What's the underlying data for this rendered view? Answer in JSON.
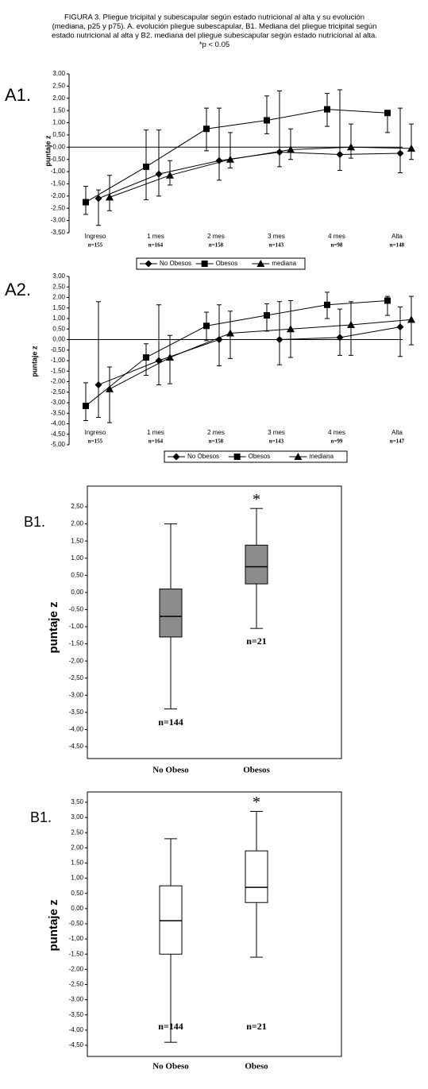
{
  "title_lines": [
    "FIGURA 3. Pliegue tricipital y subescapular según estado nutricional al alta y su evolución",
    "(mediana, p25 y p75). A. evolución pliegue subescapular, B1. Mediana del pliegue tricipital según",
    "estado nutricional al alta y B2. mediana del pliegue subescapular según estado nutricional al alta.",
    "*p < 0.05"
  ],
  "chart_data": [
    {
      "type": "line",
      "panel": "A1.",
      "y_label": "puntaje z",
      "categories": [
        "Ingreso",
        "1 mes",
        "2 mes",
        "3 mes",
        "4 mes",
        "Alta"
      ],
      "n_labels": [
        "n=155",
        "n=164",
        "n=158",
        "n=143",
        "n=98",
        "n=148"
      ],
      "ylim": [
        -3.5,
        3
      ],
      "yticks": [
        {
          "value": 3,
          "label": "3,00"
        },
        {
          "value": 2.5,
          "label": "2,50"
        },
        {
          "value": 2,
          "label": "2,00"
        },
        {
          "value": 1.5,
          "label": "1,50"
        },
        {
          "value": 1,
          "label": "1,00"
        },
        {
          "value": 0.5,
          "label": "0,50"
        },
        {
          "value": 0,
          "label": "0,00"
        },
        {
          "value": -0.5,
          "label": "-0,50"
        },
        {
          "value": -1,
          "label": "-1,00"
        },
        {
          "value": -1.5,
          "label": "-1,50"
        },
        {
          "value": -2,
          "label": "-2,00"
        },
        {
          "value": -2.5,
          "label": "-2,50"
        },
        {
          "value": -3,
          "label": "-3,00"
        },
        {
          "value": -3.5,
          "label": "-3,50"
        }
      ],
      "series": [
        {
          "name": "No Obesos",
          "marker": "diamond",
          "color": "#000000",
          "values": [
            -2.1,
            -1.1,
            -0.55,
            -0.2,
            -0.3,
            -0.25
          ],
          "low": [
            -3.2,
            -2.0,
            -1.35,
            -0.8,
            -0.95,
            -1.05
          ],
          "high": [
            -1.75,
            0.7,
            1.6,
            2.3,
            2.35,
            1.6
          ]
        },
        {
          "name": "Obesos",
          "marker": "square",
          "color": "#000000",
          "values": [
            -2.25,
            -0.8,
            0.75,
            1.1,
            1.55,
            1.4
          ],
          "low": [
            -2.75,
            -2.15,
            -0.15,
            0.55,
            0.85,
            0.6
          ],
          "high": [
            -1.6,
            0.7,
            1.6,
            2.1,
            2.2,
            1.5
          ]
        },
        {
          "name": "mediana",
          "marker": "triangle",
          "color": "#000000",
          "values": [
            -2.05,
            -1.15,
            -0.5,
            -0.1,
            0.0,
            -0.05
          ],
          "low": [
            -2.6,
            -1.55,
            -0.85,
            -0.5,
            -0.45,
            -0.5
          ],
          "high": [
            -1.15,
            -0.55,
            0.6,
            0.75,
            0.95,
            0.95
          ]
        }
      ]
    },
    {
      "type": "line",
      "panel": "A2.",
      "y_label": "puntaje z",
      "categories": [
        "Ingreso",
        "1 mes",
        "2 mes",
        "3 mes",
        "4 mes",
        "Alta"
      ],
      "n_labels": [
        "n=155",
        "n=164",
        "n=158",
        "n=143",
        "n=99",
        "n=147"
      ],
      "ylim": [
        -5,
        3
      ],
      "yticks": [
        {
          "value": 3,
          "label": "3,00"
        },
        {
          "value": 2.5,
          "label": "2,50"
        },
        {
          "value": 2,
          "label": "2,00"
        },
        {
          "value": 1.5,
          "label": "1,50"
        },
        {
          "value": 1,
          "label": "1,00"
        },
        {
          "value": 0.5,
          "label": "0,50"
        },
        {
          "value": 0,
          "label": "0,00"
        },
        {
          "value": -0.5,
          "label": "-0,50"
        },
        {
          "value": -1,
          "label": "-1,00"
        },
        {
          "value": -1.5,
          "label": "-1,50"
        },
        {
          "value": -2,
          "label": "-2,00"
        },
        {
          "value": -2.5,
          "label": "-2,50"
        },
        {
          "value": -3,
          "label": "-3,00"
        },
        {
          "value": -3.5,
          "label": "-3,50"
        },
        {
          "value": -4,
          "label": "-4,00"
        },
        {
          "value": -4.5,
          "label": "-4,50"
        },
        {
          "value": -5,
          "label": "-5,00"
        }
      ],
      "series": [
        {
          "name": "No Obesos",
          "marker": "diamond",
          "color": "#000000",
          "values": [
            -2.15,
            -1.0,
            0.0,
            0.0,
            0.1,
            0.6
          ],
          "low": [
            -3.7,
            -2.15,
            -1.25,
            -1.2,
            -0.75,
            -0.8
          ],
          "high": [
            1.8,
            1.65,
            1.65,
            1.8,
            1.45,
            1.55
          ]
        },
        {
          "name": "Obesos",
          "marker": "square",
          "color": "#000000",
          "values": [
            -3.15,
            -0.85,
            0.65,
            1.15,
            1.65,
            1.85
          ],
          "low": [
            -3.85,
            -1.7,
            -0.05,
            0.4,
            1.0,
            1.15
          ],
          "high": [
            -2.05,
            -0.2,
            1.3,
            1.7,
            2.25,
            2.05
          ]
        },
        {
          "name": "mediana",
          "marker": "triangle",
          "color": "#000000",
          "values": [
            -2.35,
            -0.85,
            0.3,
            0.5,
            0.7,
            0.95
          ],
          "low": [
            -3.95,
            -2.1,
            -0.9,
            -0.85,
            -0.75,
            -0.25
          ],
          "high": [
            -1.3,
            0.2,
            1.35,
            1.85,
            1.8,
            2.05
          ]
        }
      ]
    },
    {
      "type": "box",
      "panel": "B1.",
      "y_label": "puntaje z",
      "fill": "#8c8c8c",
      "categories": [
        "No Obeso",
        "Obesos"
      ],
      "n_labels": [
        "n=144",
        "n=21"
      ],
      "significance_labels": [
        null,
        "*"
      ],
      "ylim": [
        -4.5,
        2.5
      ],
      "yticks": [
        {
          "value": 2.5,
          "label": "2,50"
        },
        {
          "value": 2,
          "label": "2,00"
        },
        {
          "value": 1.5,
          "label": "1,50"
        },
        {
          "value": 1,
          "label": "1,00"
        },
        {
          "value": 0.5,
          "label": "0,50"
        },
        {
          "value": 0,
          "label": "0,00"
        },
        {
          "value": -0.5,
          "label": "-0,50"
        },
        {
          "value": -1,
          "label": "-1,00"
        },
        {
          "value": -1.5,
          "label": "-1,50"
        },
        {
          "value": -2,
          "label": "-2,00"
        },
        {
          "value": -2.5,
          "label": "-2,50"
        },
        {
          "value": -3,
          "label": "-3,00"
        },
        {
          "value": -3.5,
          "label": "-3,50"
        },
        {
          "value": -4,
          "label": "-4,00"
        },
        {
          "value": -4.5,
          "label": "-4,50"
        }
      ],
      "boxes": [
        {
          "whislo": -3.4,
          "q1": -1.3,
          "med": -0.7,
          "q3": 0.1,
          "whishi": 2.0
        },
        {
          "whislo": -1.05,
          "q1": 0.25,
          "med": 0.75,
          "q3": 1.38,
          "whishi": 2.45
        }
      ]
    },
    {
      "type": "box",
      "panel": "B1.",
      "y_label": "puntaje z",
      "fill": "#ffffff",
      "categories": [
        "No Obeso",
        "Obeso"
      ],
      "n_labels": [
        "n=144",
        "n=21"
      ],
      "significance_labels": [
        null,
        "*"
      ],
      "ylim": [
        -4.5,
        3.5
      ],
      "yticks": [
        {
          "value": 3.5,
          "label": "3,50"
        },
        {
          "value": 3,
          "label": "3,00"
        },
        {
          "value": 2.5,
          "label": "2,50"
        },
        {
          "value": 2,
          "label": "2,00"
        },
        {
          "value": 1.5,
          "label": "1,50"
        },
        {
          "value": 1,
          "label": "1,00"
        },
        {
          "value": 0.5,
          "label": "0,50"
        },
        {
          "value": 0,
          "label": "0,00"
        },
        {
          "value": -0.5,
          "label": "-0,50"
        },
        {
          "value": -1,
          "label": "-1,00"
        },
        {
          "value": -1.5,
          "label": "-1,50"
        },
        {
          "value": -2,
          "label": "-2,00"
        },
        {
          "value": -2.5,
          "label": "-2,50"
        },
        {
          "value": -3,
          "label": "-3,00"
        },
        {
          "value": -3.5,
          "label": "-3,50"
        },
        {
          "value": -4,
          "label": "-4,00"
        },
        {
          "value": -4.5,
          "label": "-4,50"
        }
      ],
      "boxes": [
        {
          "whislo": -4.4,
          "q1": -1.5,
          "med": -0.4,
          "q3": 0.75,
          "whishi": 2.3
        },
        {
          "whislo": -1.6,
          "q1": 0.2,
          "med": 0.7,
          "q3": 1.9,
          "whishi": 3.2
        }
      ]
    }
  ]
}
